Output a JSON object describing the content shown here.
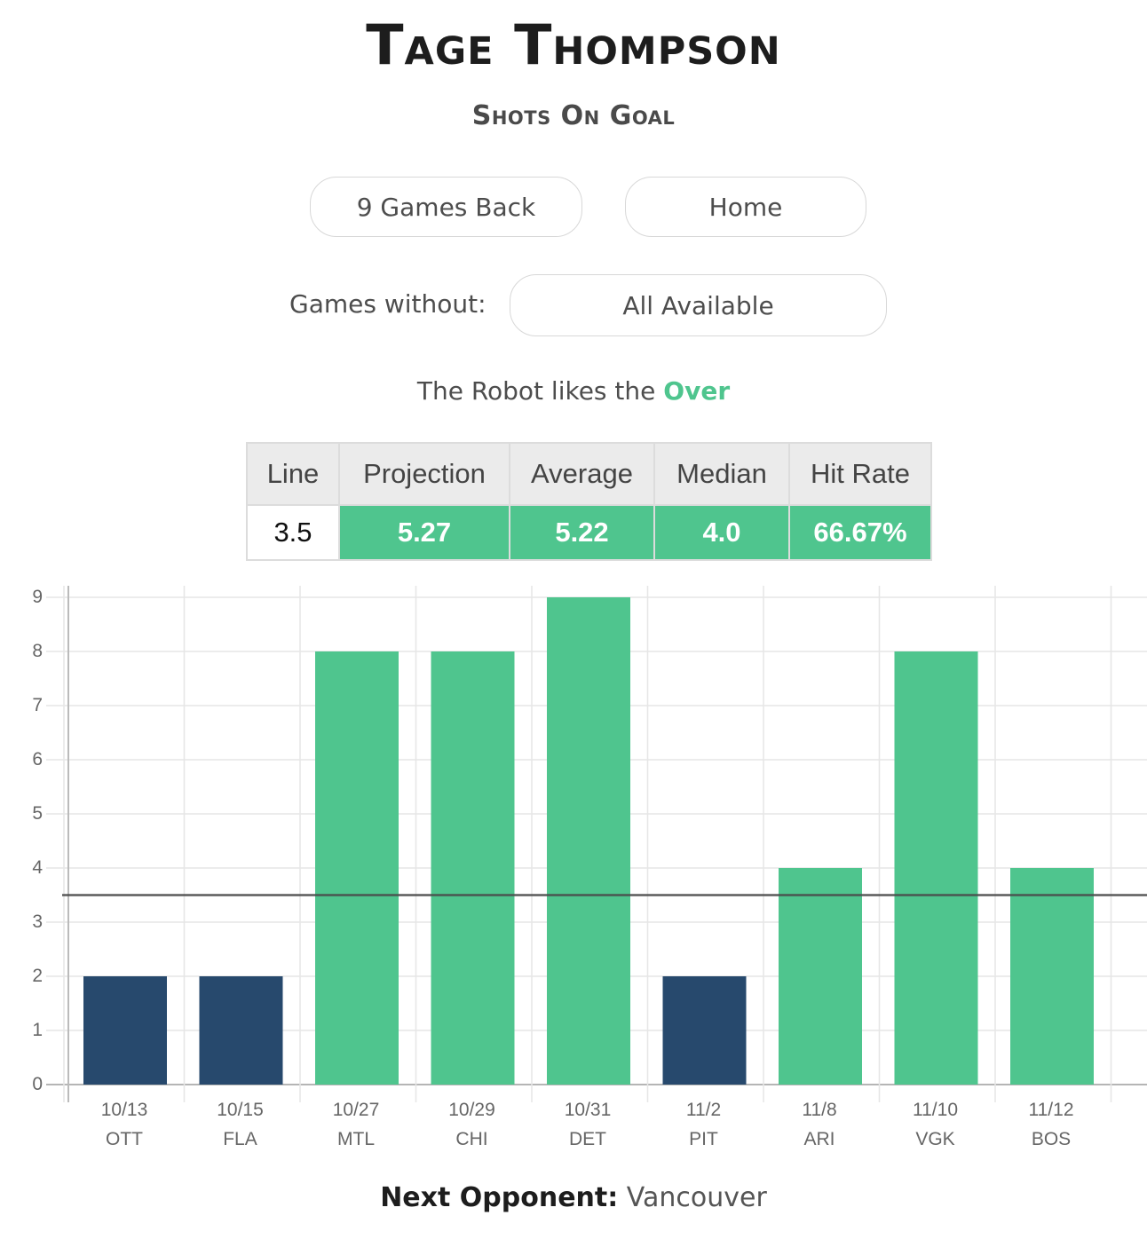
{
  "header": {
    "player_name": "Tage Thompson",
    "stat_type": "Shots On Goal"
  },
  "filters": {
    "games_back_label": "9 Games Back",
    "location_label": "Home",
    "games_without_label": "Games without:",
    "games_without_value": "All Available"
  },
  "recommendation": {
    "prefix": "The Robot likes the",
    "pick": "Over",
    "pick_color": "#4fc58e"
  },
  "stats_table": {
    "headers": [
      "Line",
      "Projection",
      "Average",
      "Median",
      "Hit Rate"
    ],
    "values": [
      "3.5",
      "5.27",
      "5.22",
      "4.0",
      "66.67%"
    ]
  },
  "footer": {
    "next_label": "Next Opponent:",
    "next_value": "Vancouver"
  },
  "colors": {
    "over": "#4fc58e",
    "under": "#27496d",
    "line": "#555555"
  },
  "chart_data": {
    "type": "bar",
    "title": "",
    "xlabel": "",
    "ylabel": "",
    "categories": [
      "10/13 OTT",
      "10/15 FLA",
      "10/27 MTL",
      "10/29 CHI",
      "10/31 DET",
      "11/2 PIT",
      "11/8 ARI",
      "11/10 VGK",
      "11/12 BOS"
    ],
    "dates": [
      "10/13",
      "10/15",
      "10/27",
      "10/29",
      "10/31",
      "11/2",
      "11/8",
      "11/10",
      "11/12"
    ],
    "opponents": [
      "OTT",
      "FLA",
      "MTL",
      "CHI",
      "DET",
      "PIT",
      "ARI",
      "VGK",
      "BOS"
    ],
    "values": [
      2,
      2,
      8,
      8,
      9,
      2,
      4,
      8,
      4
    ],
    "bar_colors": [
      "#27496d",
      "#27496d",
      "#4fc58e",
      "#4fc58e",
      "#4fc58e",
      "#27496d",
      "#4fc58e",
      "#4fc58e",
      "#4fc58e"
    ],
    "reference_line": 3.5,
    "ylim": [
      0,
      9
    ],
    "yticks": [
      0,
      1,
      2,
      3,
      4,
      5,
      6,
      7,
      8,
      9
    ],
    "grid": true,
    "legend": null
  }
}
